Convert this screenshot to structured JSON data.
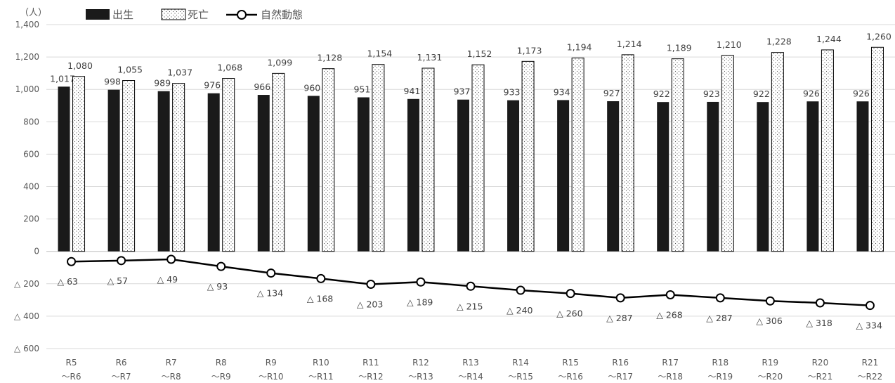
{
  "chart_data": {
    "type": "bar",
    "y_unit": "（人）",
    "categories": [
      {
        "line1": "R5",
        "line2": "～R6"
      },
      {
        "line1": "R6",
        "line2": "～R7"
      },
      {
        "line1": "R7",
        "line2": "～R8"
      },
      {
        "line1": "R8",
        "line2": "～R9"
      },
      {
        "line1": "R9",
        "line2": "～R10"
      },
      {
        "line1": "R10",
        "line2": "～R11"
      },
      {
        "line1": "R11",
        "line2": "～R12"
      },
      {
        "line1": "R12",
        "line2": "～R13"
      },
      {
        "line1": "R13",
        "line2": "～R14"
      },
      {
        "line1": "R14",
        "line2": "～R15"
      },
      {
        "line1": "R15",
        "line2": "～R16"
      },
      {
        "line1": "R16",
        "line2": "～R17"
      },
      {
        "line1": "R17",
        "line2": "～R18"
      },
      {
        "line1": "R18",
        "line2": "～R19"
      },
      {
        "line1": "R19",
        "line2": "～R20"
      },
      {
        "line1": "R20",
        "line2": "～R21"
      },
      {
        "line1": "R21",
        "line2": "～R22"
      }
    ],
    "series": [
      {
        "name": "出生",
        "kind": "bar",
        "color": "#1a1a1a",
        "values": [
          1017,
          998,
          989,
          976,
          966,
          960,
          951,
          941,
          937,
          933,
          934,
          927,
          922,
          923,
          922,
          926,
          926
        ],
        "labels": [
          "1,017",
          "998",
          "989",
          "976",
          "966",
          "960",
          "951",
          "941",
          "937",
          "933",
          "934",
          "927",
          "922",
          "923",
          "922",
          "926",
          "926"
        ]
      },
      {
        "name": "死亡",
        "kind": "bar",
        "pattern": "dotted",
        "color": "#ffffff",
        "values": [
          1080,
          1055,
          1037,
          1068,
          1099,
          1128,
          1154,
          1131,
          1152,
          1173,
          1194,
          1214,
          1189,
          1210,
          1228,
          1244,
          1260
        ],
        "labels": [
          "1,080",
          "1,055",
          "1,037",
          "1,068",
          "1,099",
          "1,128",
          "1,154",
          "1,131",
          "1,152",
          "1,173",
          "1,194",
          "1,214",
          "1,189",
          "1,210",
          "1,228",
          "1,244",
          "1,260"
        ]
      },
      {
        "name": "自然動態",
        "kind": "line",
        "color": "#000000",
        "values": [
          -63,
          -57,
          -49,
          -93,
          -134,
          -168,
          -203,
          -189,
          -215,
          -240,
          -260,
          -287,
          -268,
          -287,
          -306,
          -318,
          -334
        ],
        "labels": [
          "△ 63",
          "△ 57",
          "△ 49",
          "△ 93",
          "△ 134",
          "△ 168",
          "△ 203",
          "△ 189",
          "△ 215",
          "△ 240",
          "△ 260",
          "△ 287",
          "△ 268",
          "△ 287",
          "△ 306",
          "△ 318",
          "△ 334"
        ]
      }
    ],
    "yticks": [
      {
        "value": 1400,
        "label": "1,400"
      },
      {
        "value": 1200,
        "label": "1,200"
      },
      {
        "value": 1000,
        "label": "1,000"
      },
      {
        "value": 800,
        "label": "800"
      },
      {
        "value": 600,
        "label": "600"
      },
      {
        "value": 400,
        "label": "400"
      },
      {
        "value": 200,
        "label": "200"
      },
      {
        "value": 0,
        "label": "0"
      },
      {
        "value": -200,
        "label": "△ 200"
      },
      {
        "value": -400,
        "label": "△ 400"
      },
      {
        "value": -600,
        "label": "△ 600"
      }
    ],
    "ylim": [
      -600,
      1400
    ],
    "grid": true,
    "legend_position": "top-left"
  }
}
